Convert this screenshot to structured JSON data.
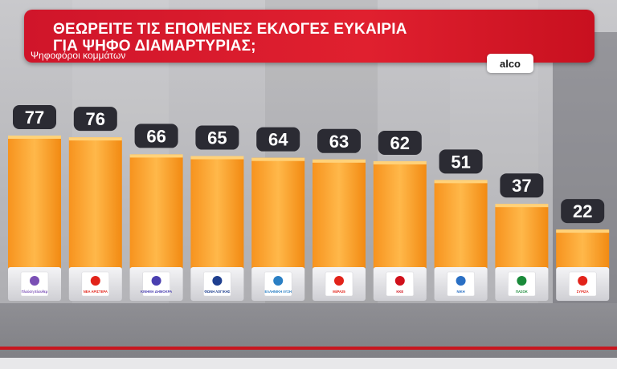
{
  "header": {
    "title_line1": "ΘΕΩΡΕΙΤΕ ΤΙΣ ΕΠΟΜΕΝΕΣ ΕΚΛΟΓΕΣ ΕΥΚΑΙΡΙΑ",
    "title_line2": "ΓΙΑ ΨΗΦΟ ΔΙΑΜΑΡΤΥΡΙΑΣ;",
    "subtitle": "Ψηφοφόροι κομμάτων"
  },
  "source": "alco",
  "colors": {
    "header_red": "#e0202f",
    "bar_orange": "#ffa726",
    "value_badge": "#2b2b33",
    "floor_stripe": "#c8161f"
  },
  "chart_data": {
    "type": "bar",
    "title": "ΘΕΩΡΕΙΤΕ ΤΙΣ ΕΠΟΜΕΝΕΣ ΕΚΛΟΓΕΣ ΕΥΚΑΙΡΙΑ ΓΙΑ ΨΗΦΟ ΔΙΑΜΑΡΤΥΡΙΑΣ;",
    "subtitle": "Ψηφοφόροι κομμάτων",
    "categories": [
      "Πλεύση Ελευθερίας",
      "ΝΕΑ ΑΡΙΣΤΕΡΑ",
      "ΚΙΝΗΜΑ ΔΗΜΟΚΡΑΤΙΑΣ",
      "ΦΩΝΗ ΛΟΓΙΚΗΣ",
      "ΕΛΛΗΝΙΚΗ ΛΥΣΗ",
      "ΜέΡΑ25",
      "ΚΚΕ",
      "ΝΙΚΗ",
      "ΠΑΣΟΚ",
      "ΣΥΡΙΖΑ"
    ],
    "values": [
      77,
      76,
      66,
      65,
      64,
      63,
      62,
      51,
      37,
      22
    ],
    "ylim": [
      0,
      80
    ],
    "grid": false,
    "legend": "none",
    "logo_colors": [
      "#7a4fb5",
      "#e2231a",
      "#4a3fb0",
      "#1f3f8f",
      "#2a7fc4",
      "#e2231a",
      "#d0101b",
      "#2a6fc4",
      "#1a8a3a",
      "#e2231a"
    ],
    "logo_text": [
      "Πλεύση Ελευθερίας",
      "ΝΕΑ ΑΡΙΣΤΕΡΑ",
      "ΚΙΝΗΜΑ ΔΗΜΟΚΡΑΤΙΑΣ",
      "ΦΩΝΗ ΛΟΓΙΚΗΣ",
      "ΕΛΛΗΝΙΚΗ ΛΥΣΗ",
      "ΜέΡΑ25",
      "ΚΚΕ",
      "ΝΙΚΗ",
      "ΠΑΣΟΚ",
      "ΣΥΡΙΖΑ"
    ]
  }
}
